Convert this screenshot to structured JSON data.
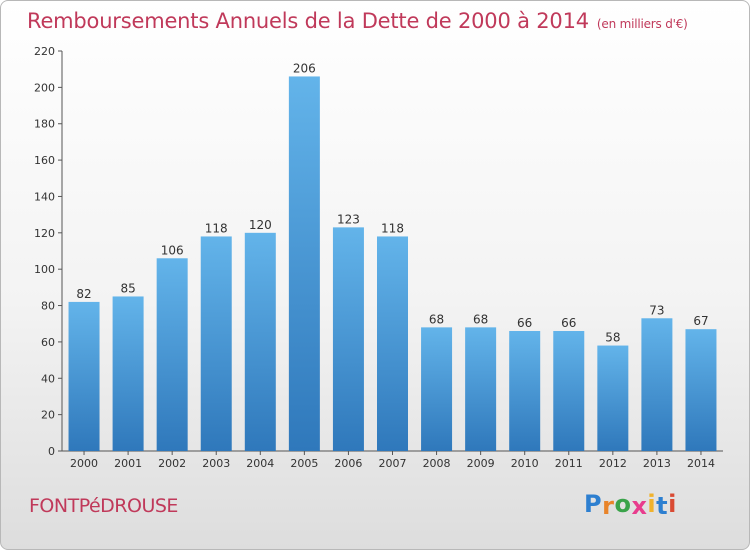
{
  "header": {
    "title": "Remboursements Annuels de la Dette de 2000 à 2014",
    "unit": "(en milliers d'€)"
  },
  "footer": {
    "town": "FONTPéDROUSE",
    "logo": "Proxiti"
  },
  "colors": {
    "title": "#c0395a",
    "bar_top": "#63b4ea",
    "bar_bottom": "#2f78bb",
    "logo": [
      "#2d7fd0",
      "#e8842a",
      "#3aa34a",
      "#e83c8d",
      "#f0b22c",
      "#2d7fd0",
      "#d94a33"
    ]
  },
  "chart_data": {
    "type": "bar",
    "title": "Remboursements Annuels de la Dette de 2000 à 2014",
    "categories": [
      "2000",
      "2001",
      "2002",
      "2003",
      "2004",
      "2005",
      "2006",
      "2007",
      "2008",
      "2009",
      "2010",
      "2011",
      "2012",
      "2013",
      "2014"
    ],
    "values": [
      82,
      85,
      106,
      118,
      120,
      206,
      123,
      118,
      68,
      68,
      66,
      66,
      58,
      73,
      67
    ],
    "ylim": [
      0,
      220
    ],
    "yticks": [
      0,
      20,
      40,
      60,
      80,
      100,
      120,
      140,
      160,
      180,
      200,
      220
    ],
    "grid": false,
    "legend": "none"
  }
}
